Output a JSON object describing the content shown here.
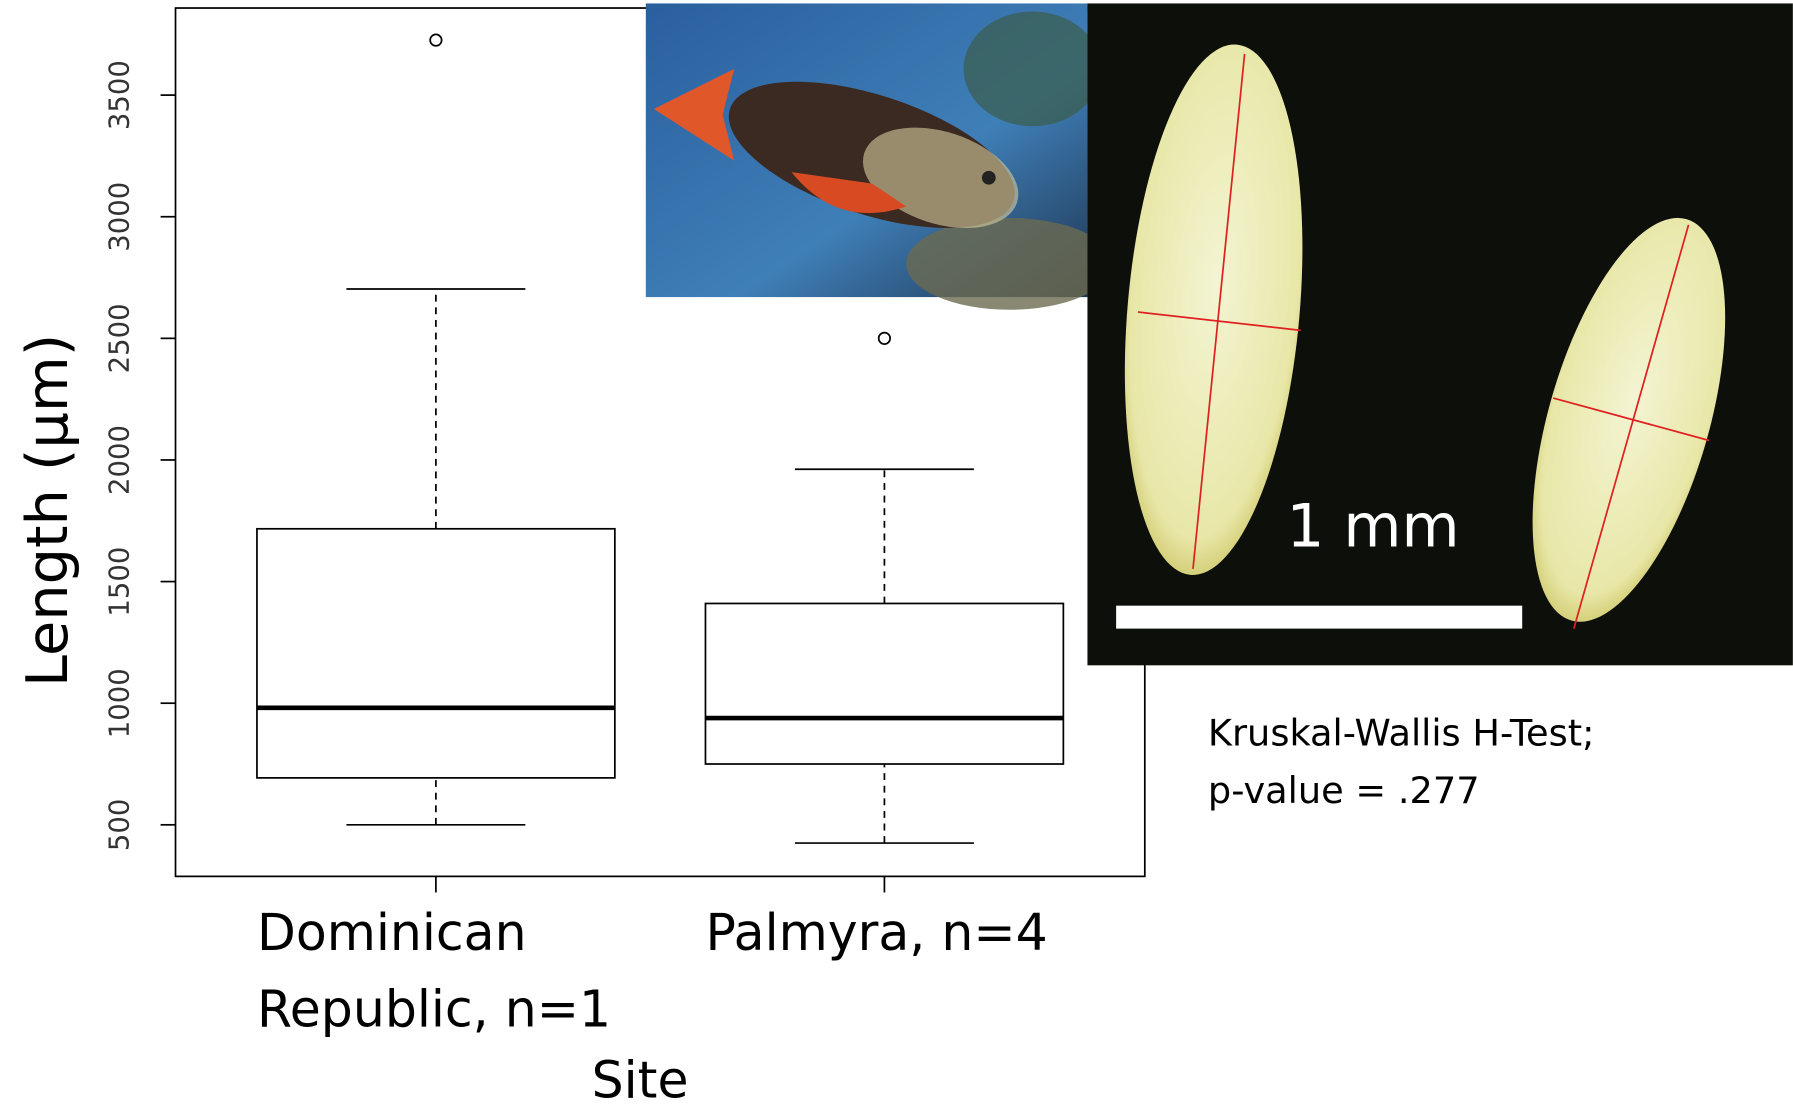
{
  "chart_data": {
    "type": "box",
    "ylabel": "Length (μm)",
    "xlabel": "Site",
    "categories": [
      "Dominican Republic, n=1",
      "Palmyra, n=4"
    ],
    "boxes": [
      {
        "whisker_low": 500,
        "q1": 693,
        "median": 981,
        "q3": 1717,
        "whisker_high": 2703,
        "outliers": [
          3726
        ]
      },
      {
        "whisker_low": 425,
        "q1": 750,
        "median": 939,
        "q3": 1410,
        "whisker_high": 1962,
        "outliers": [
          2500
        ]
      }
    ],
    "ylim": [
      288,
      3858
    ],
    "yticks": [
      500,
      1000,
      1500,
      2000,
      2500,
      3000,
      3500
    ]
  },
  "micrograph": {
    "scale_bar_label": "1 mm"
  },
  "annotation": [
    "Kruskal-Wallis H-Test;",
    "p-value = .277"
  ]
}
